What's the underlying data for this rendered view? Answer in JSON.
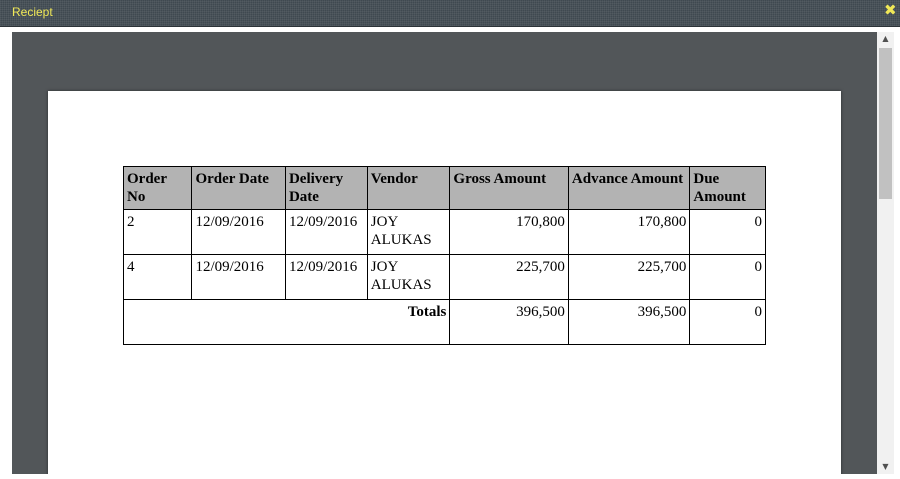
{
  "window": {
    "title": "Reciept"
  },
  "receipt": {
    "headers": [
      "Order No",
      "Order Date",
      "Delivery Date",
      "Vendor",
      "Gross Amount",
      "Advance Amount",
      "Due Amount"
    ],
    "rows": [
      [
        "2",
        "12/09/2016",
        "12/09/2016",
        "JOY ALUKAS",
        "170,800",
        "170,800",
        "0"
      ],
      [
        "4",
        "12/09/2016",
        "12/09/2016",
        "JOY ALUKAS",
        "225,700",
        "225,700",
        "0"
      ]
    ],
    "totals_label": "Totals",
    "totals": [
      "396,500",
      "396,500",
      "0"
    ]
  },
  "icons": {
    "close": "close-icon",
    "scroll_up": "arrow-up-icon",
    "scroll_down": "arrow-down-icon"
  },
  "colors": {
    "title_text": "#f0e857",
    "viewer_bg": "#525659",
    "header_bg": "#b3b3b3"
  }
}
